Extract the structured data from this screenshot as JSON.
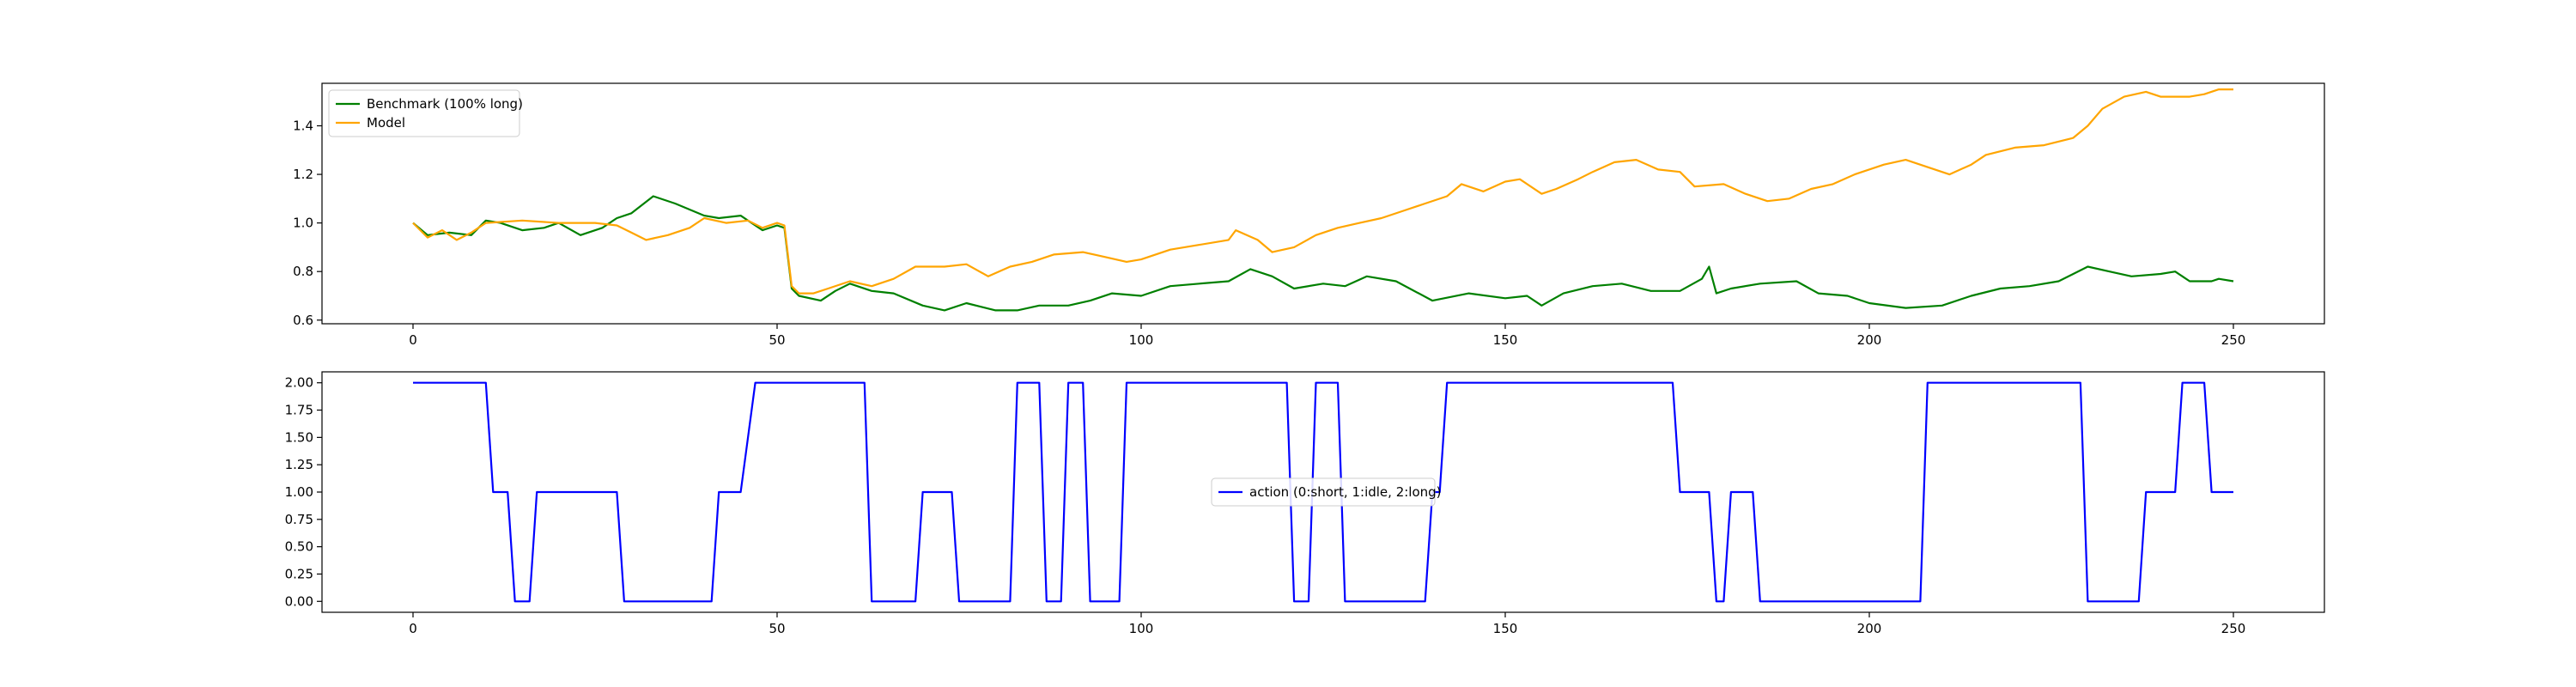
{
  "chart_data": [
    {
      "type": "line",
      "title": "",
      "xlabel": "",
      "ylabel": "",
      "xlim": [
        -12.5,
        262.5
      ],
      "ylim": [
        0.585,
        1.575
      ],
      "xticks": [
        0,
        50,
        100,
        150,
        200,
        250
      ],
      "xtick_labels": [
        "0",
        "50",
        "100",
        "150",
        "200",
        "250"
      ],
      "yticks": [
        0.6,
        0.8,
        1.0,
        1.2,
        1.4
      ],
      "ytick_labels": [
        "0.6",
        "0.8",
        "1.0",
        "1.2",
        "1.4"
      ],
      "grid": false,
      "legend": "upper-left",
      "series": [
        {
          "name": "Benchmark (100% long)",
          "color": "#008000",
          "points": [
            [
              0,
              1.0
            ],
            [
              2,
              0.95
            ],
            [
              5,
              0.96
            ],
            [
              8,
              0.95
            ],
            [
              10,
              1.01
            ],
            [
              12,
              1.0
            ],
            [
              15,
              0.97
            ],
            [
              18,
              0.98
            ],
            [
              20,
              1.0
            ],
            [
              23,
              0.95
            ],
            [
              26,
              0.98
            ],
            [
              28,
              1.02
            ],
            [
              30,
              1.04
            ],
            [
              33,
              1.11
            ],
            [
              36,
              1.08
            ],
            [
              40,
              1.03
            ],
            [
              42,
              1.02
            ],
            [
              45,
              1.03
            ],
            [
              48,
              0.97
            ],
            [
              50,
              0.99
            ],
            [
              51,
              0.98
            ],
            [
              52,
              0.73
            ],
            [
              53,
              0.7
            ],
            [
              56,
              0.68
            ],
            [
              58,
              0.72
            ],
            [
              60,
              0.75
            ],
            [
              63,
              0.72
            ],
            [
              66,
              0.71
            ],
            [
              70,
              0.66
            ],
            [
              73,
              0.64
            ],
            [
              76,
              0.67
            ],
            [
              80,
              0.64
            ],
            [
              83,
              0.64
            ],
            [
              86,
              0.66
            ],
            [
              90,
              0.66
            ],
            [
              93,
              0.68
            ],
            [
              96,
              0.71
            ],
            [
              100,
              0.7
            ],
            [
              104,
              0.74
            ],
            [
              108,
              0.75
            ],
            [
              112,
              0.76
            ],
            [
              115,
              0.81
            ],
            [
              118,
              0.78
            ],
            [
              121,
              0.73
            ],
            [
              125,
              0.75
            ],
            [
              128,
              0.74
            ],
            [
              131,
              0.78
            ],
            [
              135,
              0.76
            ],
            [
              140,
              0.68
            ],
            [
              145,
              0.71
            ],
            [
              150,
              0.69
            ],
            [
              153,
              0.7
            ],
            [
              155,
              0.66
            ],
            [
              158,
              0.71
            ],
            [
              162,
              0.74
            ],
            [
              166,
              0.75
            ],
            [
              170,
              0.72
            ],
            [
              174,
              0.72
            ],
            [
              177,
              0.77
            ],
            [
              178,
              0.82
            ],
            [
              179,
              0.71
            ],
            [
              181,
              0.73
            ],
            [
              185,
              0.75
            ],
            [
              190,
              0.76
            ],
            [
              193,
              0.71
            ],
            [
              197,
              0.7
            ],
            [
              200,
              0.67
            ],
            [
              205,
              0.65
            ],
            [
              210,
              0.66
            ],
            [
              214,
              0.7
            ],
            [
              218,
              0.73
            ],
            [
              222,
              0.74
            ],
            [
              226,
              0.76
            ],
            [
              230,
              0.82
            ],
            [
              233,
              0.8
            ],
            [
              236,
              0.78
            ],
            [
              240,
              0.79
            ],
            [
              242,
              0.8
            ],
            [
              244,
              0.76
            ],
            [
              247,
              0.76
            ],
            [
              248,
              0.77
            ],
            [
              250,
              0.76
            ]
          ]
        },
        {
          "name": "Model",
          "color": "#FFA500",
          "points": [
            [
              0,
              1.0
            ],
            [
              2,
              0.94
            ],
            [
              4,
              0.97
            ],
            [
              6,
              0.93
            ],
            [
              8,
              0.96
            ],
            [
              10,
              1.0
            ],
            [
              15,
              1.01
            ],
            [
              20,
              1.0
            ],
            [
              25,
              1.0
            ],
            [
              28,
              0.99
            ],
            [
              30,
              0.96
            ],
            [
              32,
              0.93
            ],
            [
              35,
              0.95
            ],
            [
              38,
              0.98
            ],
            [
              40,
              1.02
            ],
            [
              43,
              1.0
            ],
            [
              46,
              1.01
            ],
            [
              48,
              0.98
            ],
            [
              50,
              1.0
            ],
            [
              51,
              0.99
            ],
            [
              52,
              0.74
            ],
            [
              53,
              0.71
            ],
            [
              55,
              0.71
            ],
            [
              57,
              0.73
            ],
            [
              60,
              0.76
            ],
            [
              63,
              0.74
            ],
            [
              66,
              0.77
            ],
            [
              69,
              0.82
            ],
            [
              73,
              0.82
            ],
            [
              76,
              0.83
            ],
            [
              79,
              0.78
            ],
            [
              82,
              0.82
            ],
            [
              85,
              0.84
            ],
            [
              88,
              0.87
            ],
            [
              92,
              0.88
            ],
            [
              95,
              0.86
            ],
            [
              98,
              0.84
            ],
            [
              100,
              0.85
            ],
            [
              104,
              0.89
            ],
            [
              108,
              0.91
            ],
            [
              112,
              0.93
            ],
            [
              113,
              0.97
            ],
            [
              116,
              0.93
            ],
            [
              118,
              0.88
            ],
            [
              121,
              0.9
            ],
            [
              124,
              0.95
            ],
            [
              127,
              0.98
            ],
            [
              130,
              1.0
            ],
            [
              133,
              1.02
            ],
            [
              136,
              1.05
            ],
            [
              139,
              1.08
            ],
            [
              142,
              1.11
            ],
            [
              144,
              1.16
            ],
            [
              147,
              1.13
            ],
            [
              150,
              1.17
            ],
            [
              152,
              1.18
            ],
            [
              155,
              1.12
            ],
            [
              157,
              1.14
            ],
            [
              160,
              1.18
            ],
            [
              162,
              1.21
            ],
            [
              165,
              1.25
            ],
            [
              168,
              1.26
            ],
            [
              171,
              1.22
            ],
            [
              174,
              1.21
            ],
            [
              176,
              1.15
            ],
            [
              180,
              1.16
            ],
            [
              183,
              1.12
            ],
            [
              186,
              1.09
            ],
            [
              189,
              1.1
            ],
            [
              192,
              1.14
            ],
            [
              195,
              1.16
            ],
            [
              198,
              1.2
            ],
            [
              202,
              1.24
            ],
            [
              205,
              1.26
            ],
            [
              208,
              1.23
            ],
            [
              211,
              1.2
            ],
            [
              214,
              1.24
            ],
            [
              216,
              1.28
            ],
            [
              220,
              1.31
            ],
            [
              224,
              1.32
            ],
            [
              228,
              1.35
            ],
            [
              230,
              1.4
            ],
            [
              232,
              1.47
            ],
            [
              235,
              1.52
            ],
            [
              238,
              1.54
            ],
            [
              240,
              1.52
            ],
            [
              244,
              1.52
            ],
            [
              246,
              1.53
            ],
            [
              248,
              1.55
            ],
            [
              250,
              1.55
            ]
          ]
        }
      ]
    },
    {
      "type": "line",
      "title": "",
      "xlabel": "",
      "ylabel": "",
      "xlim": [
        -12.5,
        262.5
      ],
      "ylim": [
        -0.1,
        2.1
      ],
      "xticks": [
        0,
        50,
        100,
        150,
        200,
        250
      ],
      "xtick_labels": [
        "0",
        "50",
        "100",
        "150",
        "200",
        "250"
      ],
      "yticks": [
        0.0,
        0.25,
        0.5,
        0.75,
        1.0,
        1.25,
        1.5,
        1.75,
        2.0
      ],
      "ytick_labels": [
        "0.00",
        "0.25",
        "0.50",
        "0.75",
        "1.00",
        "1.25",
        "1.50",
        "1.75",
        "2.00"
      ],
      "grid": false,
      "legend": "center",
      "series": [
        {
          "name": "action (0:short, 1:idle, 2:long)",
          "color": "#0000FF",
          "points": [
            [
              0,
              2
            ],
            [
              10,
              2
            ],
            [
              11,
              1
            ],
            [
              13,
              1
            ],
            [
              14,
              0
            ],
            [
              16,
              0
            ],
            [
              17,
              1
            ],
            [
              28,
              1
            ],
            [
              29,
              0
            ],
            [
              41,
              0
            ],
            [
              42,
              1
            ],
            [
              45,
              1
            ],
            [
              47,
              2
            ],
            [
              62,
              2
            ],
            [
              63,
              0
            ],
            [
              69,
              0
            ],
            [
              70,
              1
            ],
            [
              74,
              1
            ],
            [
              75,
              0
            ],
            [
              82,
              0
            ],
            [
              83,
              2
            ],
            [
              86,
              2
            ],
            [
              87,
              0
            ],
            [
              89,
              0
            ],
            [
              90,
              2
            ],
            [
              92,
              2
            ],
            [
              93,
              0
            ],
            [
              97,
              0
            ],
            [
              98,
              2
            ],
            [
              120,
              2
            ],
            [
              121,
              0
            ],
            [
              123,
              0
            ],
            [
              124,
              2
            ],
            [
              127,
              2
            ],
            [
              128,
              0
            ],
            [
              139,
              0
            ],
            [
              140,
              1
            ],
            [
              141,
              1
            ],
            [
              142,
              2
            ],
            [
              173,
              2
            ],
            [
              174,
              1
            ],
            [
              178,
              1
            ],
            [
              179,
              0
            ],
            [
              180,
              0
            ],
            [
              181,
              1
            ],
            [
              184,
              1
            ],
            [
              185,
              0
            ],
            [
              207,
              0
            ],
            [
              208,
              2
            ],
            [
              229,
              2
            ],
            [
              230,
              0
            ],
            [
              237,
              0
            ],
            [
              238,
              1
            ],
            [
              242,
              1
            ],
            [
              243,
              2
            ],
            [
              246,
              2
            ],
            [
              247,
              1
            ],
            [
              250,
              1
            ]
          ]
        }
      ]
    }
  ]
}
